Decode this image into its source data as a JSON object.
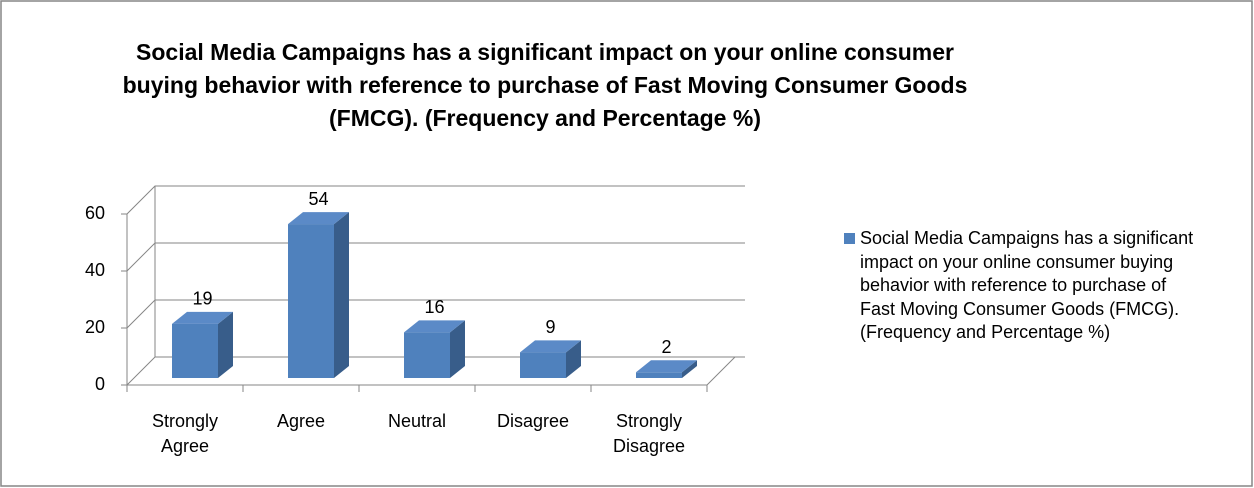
{
  "chart_data": {
    "type": "bar",
    "title": "Social Media Campaigns has a significant impact on your online consumer buying behavior with reference to purchase of Fast Moving Consumer Goods (FMCG). (Frequency and Percentage %)",
    "categories": [
      "Strongly Agree",
      "Agree",
      "Neutral",
      "Disagree",
      "Strongly Disagree"
    ],
    "series": [
      {
        "name": "Social Media Campaigns has a significant impact on your online consumer buying behavior with reference to purchase of Fast Moving Consumer Goods (FMCG). (Frequency and Percentage %)",
        "color": "#4f81bd",
        "values": [
          19,
          54,
          16,
          9,
          2
        ]
      }
    ],
    "ylim": [
      0,
      60
    ],
    "yticks": [
      0,
      20,
      40,
      60
    ],
    "grid": true,
    "legend": "right"
  }
}
